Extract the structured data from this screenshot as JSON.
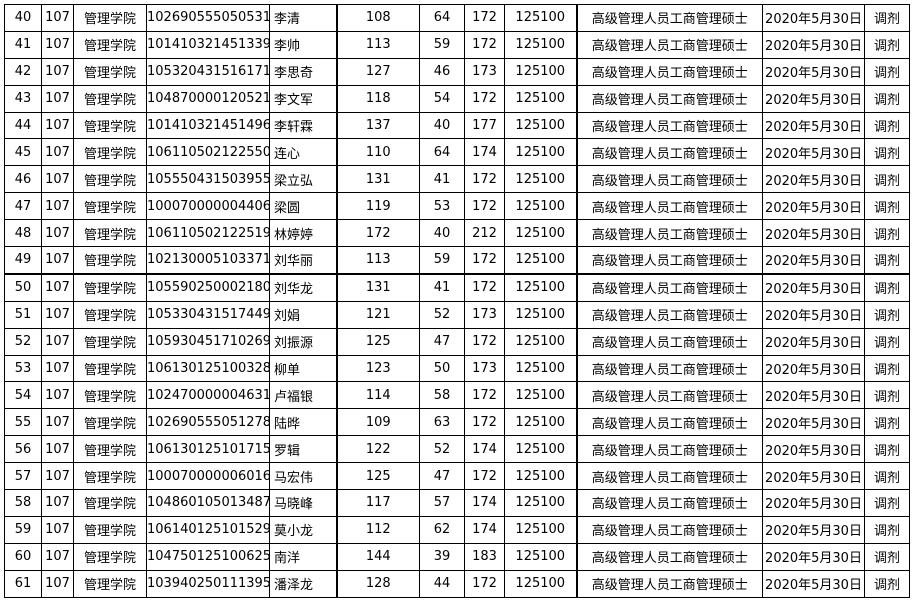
{
  "rows": [
    [
      "40",
      "107",
      "管理学院",
      "102690555050531",
      "李清",
      "108",
      "64",
      "172",
      "125100",
      "高级管理人员工商管理硕士",
      "2020年5月30日",
      "调剂"
    ],
    [
      "41",
      "107",
      "管理学院",
      "101410321451339",
      "李帅",
      "113",
      "59",
      "172",
      "125100",
      "高级管理人员工商管理硕士",
      "2020年5月30日",
      "调剂"
    ],
    [
      "42",
      "107",
      "管理学院",
      "105320431516171",
      "李思奇",
      "127",
      "46",
      "173",
      "125100",
      "高级管理人员工商管理硕士",
      "2020年5月30日",
      "调剂"
    ],
    [
      "43",
      "107",
      "管理学院",
      "104870000120521",
      "李文军",
      "118",
      "54",
      "172",
      "125100",
      "高级管理人员工商管理硕士",
      "2020年5月30日",
      "调剂"
    ],
    [
      "44",
      "107",
      "管理学院",
      "101410321451496",
      "李轩霖",
      "137",
      "40",
      "177",
      "125100",
      "高级管理人员工商管理硕士",
      "2020年5月30日",
      "调剂"
    ],
    [
      "45",
      "107",
      "管理学院",
      "106110502122550",
      "连心",
      "110",
      "64",
      "174",
      "125100",
      "高级管理人员工商管理硕士",
      "2020年5月30日",
      "调剂"
    ],
    [
      "46",
      "107",
      "管理学院",
      "105550431503955",
      "梁立弘",
      "131",
      "41",
      "172",
      "125100",
      "高级管理人员工商管理硕士",
      "2020年5月30日",
      "调剂"
    ],
    [
      "47",
      "107",
      "管理学院",
      "100070000004406",
      "梁圆",
      "119",
      "53",
      "172",
      "125100",
      "高级管理人员工商管理硕士",
      "2020年5月30日",
      "调剂"
    ],
    [
      "48",
      "107",
      "管理学院",
      "106110502122519",
      "林婷婷",
      "172",
      "40",
      "212",
      "125100",
      "高级管理人员工商管理硕士",
      "2020年5月30日",
      "调剂"
    ],
    [
      "49",
      "107",
      "管理学院",
      "102130005103371",
      "刘华丽",
      "113",
      "59",
      "172",
      "125100",
      "高级管理人员工商管理硕士",
      "2020年5月30日",
      "调剂"
    ],
    [
      "50",
      "107",
      "管理学院",
      "105590250002180",
      "刘华龙",
      "131",
      "41",
      "172",
      "125100",
      "高级管理人员工商管理硕士",
      "2020年5月30日",
      "调剂"
    ],
    [
      "51",
      "107",
      "管理学院",
      "105330431517449",
      "刘娟",
      "121",
      "52",
      "173",
      "125100",
      "高级管理人员工商管理硕士",
      "2020年5月30日",
      "调剂"
    ],
    [
      "52",
      "107",
      "管理学院",
      "105930451710269",
      "刘振源",
      "125",
      "47",
      "172",
      "125100",
      "高级管理人员工商管理硕士",
      "2020年5月30日",
      "调剂"
    ],
    [
      "53",
      "107",
      "管理学院",
      "106130125100328",
      "柳单",
      "123",
      "50",
      "173",
      "125100",
      "高级管理人员工商管理硕士",
      "2020年5月30日",
      "调剂"
    ],
    [
      "54",
      "107",
      "管理学院",
      "102470000004631",
      "卢福银",
      "114",
      "58",
      "172",
      "125100",
      "高级管理人员工商管理硕士",
      "2020年5月30日",
      "调剂"
    ],
    [
      "55",
      "107",
      "管理学院",
      "102690555051278",
      "陆晔",
      "109",
      "63",
      "172",
      "125100",
      "高级管理人员工商管理硕士",
      "2020年5月30日",
      "调剂"
    ],
    [
      "56",
      "107",
      "管理学院",
      "106130125101715",
      "罗辑",
      "122",
      "52",
      "174",
      "125100",
      "高级管理人员工商管理硕士",
      "2020年5月30日",
      "调剂"
    ],
    [
      "57",
      "107",
      "管理学院",
      "100070000006016",
      "马宏伟",
      "125",
      "47",
      "172",
      "125100",
      "高级管理人员工商管理硕士",
      "2020年5月30日",
      "调剂"
    ],
    [
      "58",
      "107",
      "管理学院",
      "104860105013487",
      "马晓峰",
      "117",
      "57",
      "174",
      "125100",
      "高级管理人员工商管理硕士",
      "2020年5月30日",
      "调剂"
    ],
    [
      "59",
      "107",
      "管理学院",
      "106140125101529",
      "莫小龙",
      "112",
      "62",
      "174",
      "125100",
      "高级管理人员工商管理硕士",
      "2020年5月30日",
      "调剂"
    ],
    [
      "60",
      "107",
      "管理学院",
      "104750125100625",
      "南洋",
      "144",
      "39",
      "183",
      "125100",
      "高级管理人员工商管理硕士",
      "2020年5月30日",
      "调剂"
    ],
    [
      "61",
      "107",
      "管理学院",
      "103940250111395",
      "潘泽龙",
      "128",
      "44",
      "172",
      "125100",
      "高级管理人员工商管理硕士",
      "2020年5月30日",
      "调剂"
    ]
  ]
}
